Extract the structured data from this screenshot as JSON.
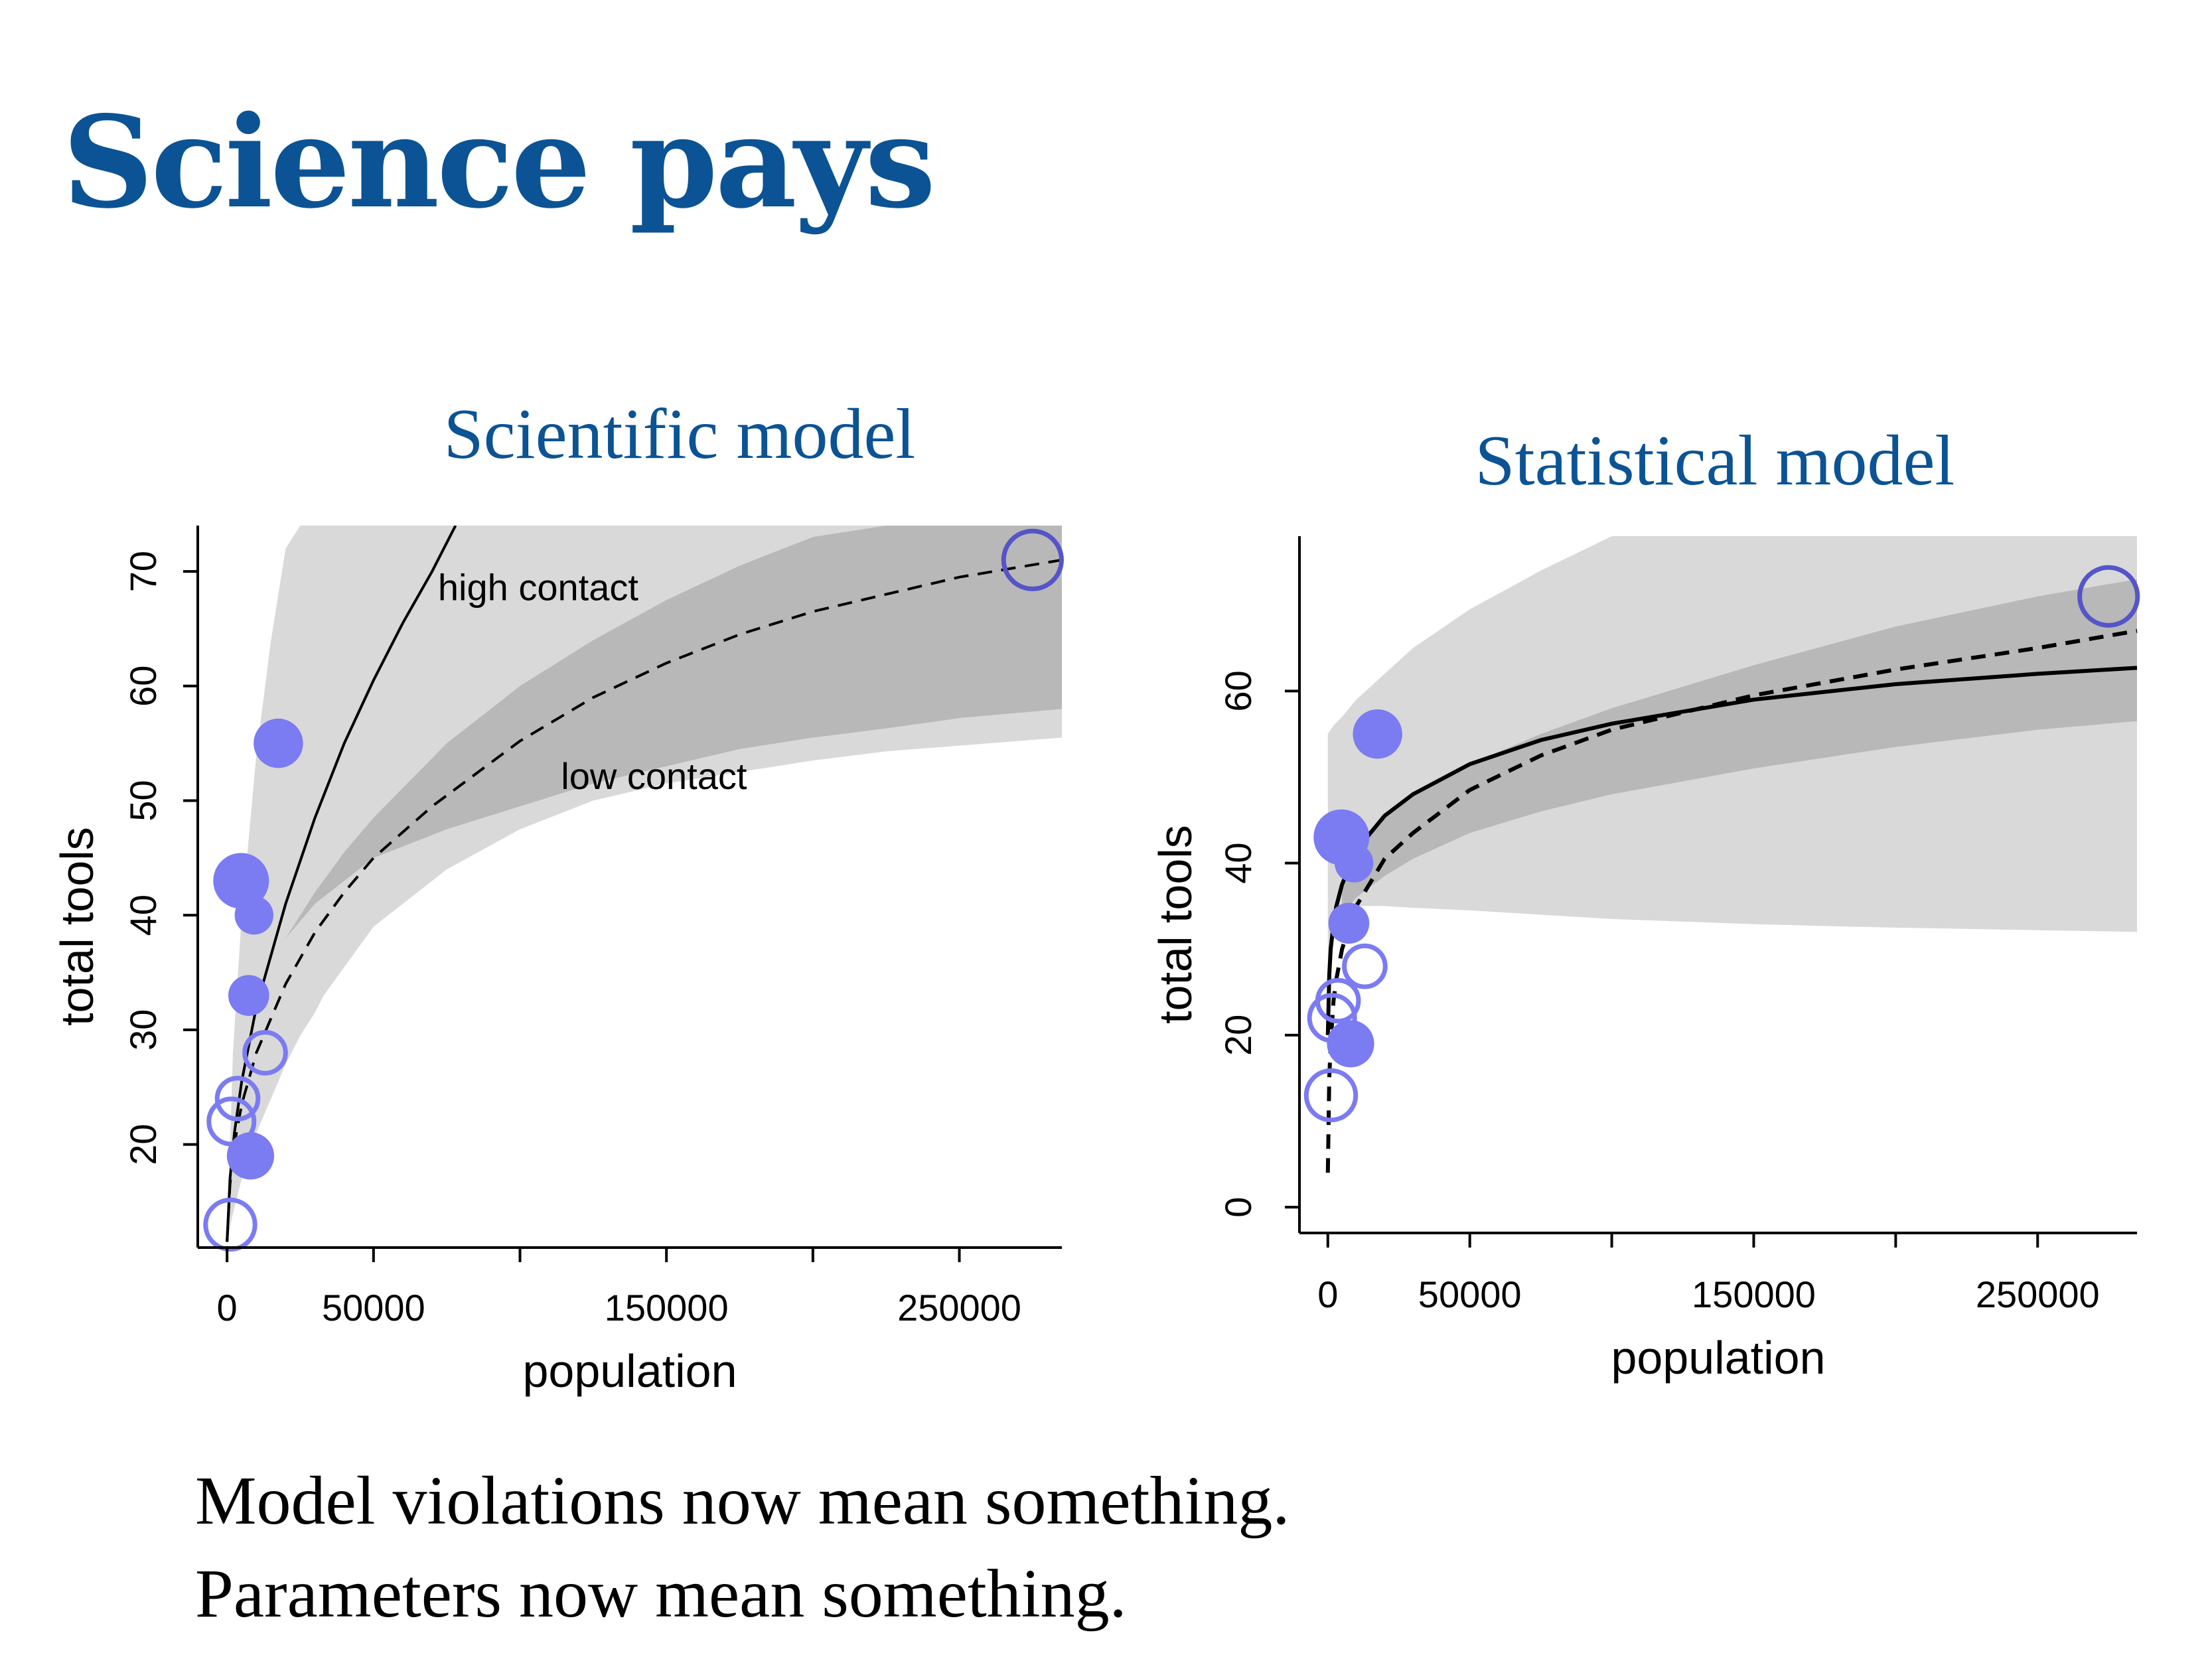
{
  "slide": {
    "title": "Science pays",
    "captions": [
      "Model violations now mean something.",
      "Parameters now mean something."
    ]
  },
  "colors": {
    "title": "#0b5394",
    "point": "#7b7bf2",
    "band_outer": "#d9d9d9",
    "band_inner": "#b8b8b8"
  },
  "chart_data": [
    {
      "type": "scatter",
      "title": "Scientific model",
      "xlabel": "population",
      "ylabel": "total tools",
      "xlim": [
        -10000,
        285000
      ],
      "ylim": [
        11,
        74
      ],
      "xticks": [
        0,
        50000,
        100000,
        150000,
        200000,
        250000
      ],
      "xtick_labels": [
        "0",
        "50000",
        "",
        "150000",
        "",
        "250000"
      ],
      "yticks": [
        20,
        30,
        40,
        50,
        60,
        70
      ],
      "points": [
        {
          "x": 1100,
          "y": 13,
          "contact": "low",
          "size": 1.2
        },
        {
          "x": 1500,
          "y": 22,
          "contact": "low",
          "size": 1.0
        },
        {
          "x": 3600,
          "y": 24,
          "contact": "low",
          "size": 0.8
        },
        {
          "x": 4791,
          "y": 43,
          "contact": "high",
          "size": 1.5
        },
        {
          "x": 7400,
          "y": 33,
          "contact": "high",
          "size": 0.8
        },
        {
          "x": 8000,
          "y": 19,
          "contact": "high",
          "size": 1.1
        },
        {
          "x": 9200,
          "y": 40,
          "contact": "high",
          "size": 0.7
        },
        {
          "x": 13000,
          "y": 28,
          "contact": "low",
          "size": 0.8
        },
        {
          "x": 17500,
          "y": 55,
          "contact": "high",
          "size": 1.2
        },
        {
          "x": 275000,
          "y": 71,
          "contact": "low",
          "size": 1.6
        }
      ],
      "curves": [
        {
          "name": "high contact",
          "style": "solid",
          "x": [
            0,
            1000,
            2500,
            5000,
            10000,
            20000,
            30000,
            40000,
            50000,
            60000,
            70000,
            78000
          ],
          "y": [
            11.5,
            17,
            21,
            25.5,
            32,
            41,
            48.5,
            55,
            60.5,
            65.5,
            70,
            74
          ]
        },
        {
          "name": "low contact",
          "style": "dashed",
          "x": [
            0,
            1000,
            2500,
            5000,
            10000,
            20000,
            30000,
            40000,
            50000,
            70000,
            100000,
            125000,
            150000,
            175000,
            200000,
            250000,
            285000
          ],
          "y": [
            11.5,
            16.5,
            20,
            23.5,
            28,
            34,
            38.5,
            42,
            45,
            49.5,
            55.2,
            59,
            62,
            64.5,
            66.5,
            69.5,
            71
          ]
        }
      ],
      "bands": [
        {
          "level": "outer",
          "x": [
            0,
            2000,
            5000,
            10000,
            15000,
            20000,
            25000,
            30000,
            33000,
            50000,
            75000,
            100000,
            125000,
            150000,
            175000,
            200000,
            225000,
            250000,
            285000
          ],
          "lower": [
            11.5,
            14,
            17,
            21,
            24,
            27,
            29.5,
            31.5,
            33,
            39,
            44,
            47.5,
            50,
            51.5,
            52.5,
            53.5,
            54.3,
            54.8,
            55.5
          ],
          "upper": [
            11.5,
            28,
            40,
            54,
            64,
            72,
            74,
            74,
            74,
            74,
            74,
            74,
            74,
            74,
            74,
            74,
            74,
            74,
            74
          ]
        },
        {
          "level": "inner",
          "x": [
            20000,
            30000,
            40000,
            50000,
            75000,
            100000,
            125000,
            150000,
            175000,
            200000,
            225000,
            250000,
            285000
          ],
          "lower": [
            38,
            41,
            43,
            45,
            47.5,
            49.5,
            51.5,
            53,
            54.5,
            55.5,
            56.3,
            57.2,
            58
          ],
          "upper": [
            38,
            42,
            45.5,
            48.5,
            55,
            60,
            64,
            67.5,
            70.5,
            73,
            74,
            74,
            74
          ]
        }
      ],
      "annotations": [
        {
          "text": "high contact",
          "x": 72000,
          "y": 67.5
        },
        {
          "text": "low contact",
          "x": 114000,
          "y": 51
        }
      ]
    },
    {
      "type": "scatter",
      "title": "Statistical model",
      "xlabel": "population",
      "ylabel": "total tools",
      "xlim": [
        -10000,
        285000
      ],
      "ylim": [
        -3,
        78
      ],
      "xticks": [
        0,
        50000,
        100000,
        150000,
        200000,
        250000
      ],
      "xtick_labels": [
        "0",
        "50000",
        "",
        "150000",
        "",
        "250000"
      ],
      "yticks": [
        0,
        20,
        40,
        60
      ],
      "points": [
        {
          "x": 1100,
          "y": 13,
          "contact": "low",
          "size": 1.2
        },
        {
          "x": 1500,
          "y": 22,
          "contact": "low",
          "size": 1.0
        },
        {
          "x": 3600,
          "y": 24,
          "contact": "low",
          "size": 0.8
        },
        {
          "x": 4791,
          "y": 43,
          "contact": "high",
          "size": 1.5
        },
        {
          "x": 7400,
          "y": 33,
          "contact": "high",
          "size": 0.8
        },
        {
          "x": 8000,
          "y": 19,
          "contact": "high",
          "size": 1.1
        },
        {
          "x": 9200,
          "y": 40,
          "contact": "high",
          "size": 0.7
        },
        {
          "x": 13000,
          "y": 28,
          "contact": "low",
          "size": 0.8
        },
        {
          "x": 17500,
          "y": 55,
          "contact": "high",
          "size": 1.2
        },
        {
          "x": 275000,
          "y": 71,
          "contact": "low",
          "size": 1.6
        }
      ],
      "curves": [
        {
          "name": "high contact",
          "style": "solid",
          "x": [
            0,
            500,
            1000,
            2000,
            3000,
            5000,
            10000,
            20000,
            30000,
            50000,
            75000,
            100000,
            150000,
            200000,
            250000,
            285000
          ],
          "y": [
            20,
            27,
            30,
            33,
            35,
            37.5,
            41.5,
            45.5,
            48,
            51.5,
            54.3,
            56.2,
            59,
            60.8,
            62,
            62.7
          ]
        },
        {
          "name": "low contact",
          "style": "dashed",
          "x": [
            0,
            500,
            1000,
            2000,
            3000,
            5000,
            10000,
            20000,
            30000,
            50000,
            75000,
            100000,
            150000,
            200000,
            250000,
            285000
          ],
          "y": [
            4,
            15,
            19,
            24,
            26.5,
            30,
            35,
            40.5,
            43.5,
            48.5,
            52.5,
            55.5,
            59.5,
            62.5,
            65,
            67
          ]
        }
      ],
      "bands": [
        {
          "level": "outer",
          "x": [
            0,
            2000,
            5000,
            10000,
            20000,
            30000,
            50000,
            75000,
            100000,
            125000,
            150000,
            185000,
            200000,
            250000,
            285000
          ],
          "lower": [
            27,
            33,
            34.5,
            35,
            35,
            34.8,
            34.5,
            34,
            33.5,
            33.2,
            32.9,
            32.6,
            32.5,
            32.2,
            32
          ],
          "upper": [
            55,
            56,
            57,
            59,
            62,
            65,
            69.5,
            74,
            78,
            78,
            78,
            78,
            78,
            78,
            78
          ]
        },
        {
          "level": "inner",
          "x": [
            5000,
            10000,
            20000,
            30000,
            50000,
            75000,
            100000,
            150000,
            200000,
            250000,
            285000
          ],
          "lower": [
            34,
            36,
            38.5,
            40.5,
            43.5,
            46,
            48,
            51,
            53.5,
            55.5,
            56.5
          ],
          "upper": [
            38,
            42,
            45.5,
            48,
            51.5,
            55,
            58,
            63,
            67.5,
            71,
            73
          ]
        }
      ],
      "annotations": []
    }
  ]
}
